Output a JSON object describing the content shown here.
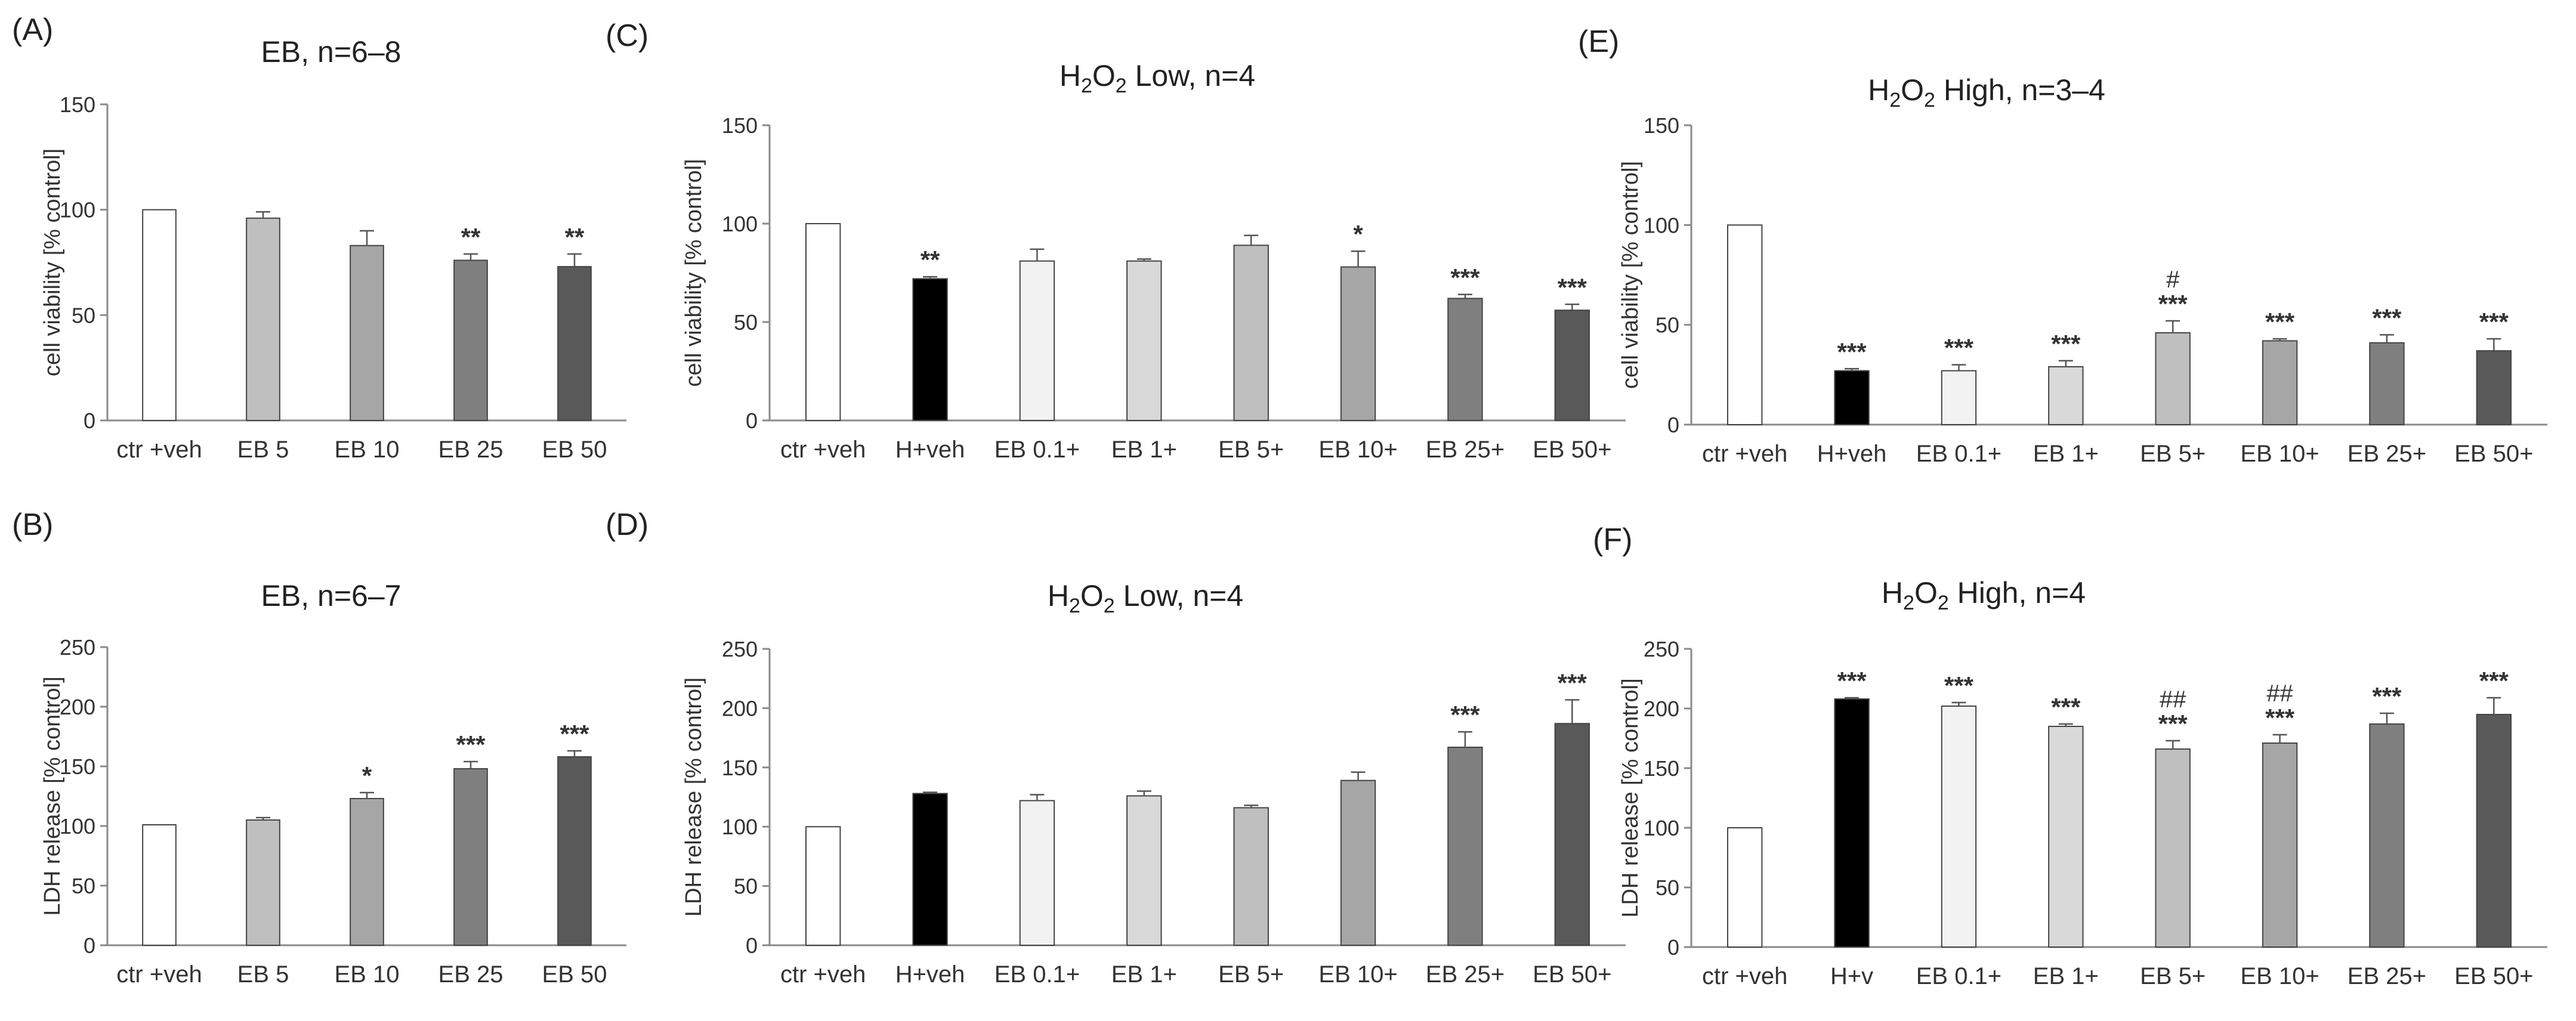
{
  "figure": {
    "panels": [
      {
        "letter": "(A)",
        "title_parts": [
          "EB, n=6–8"
        ]
      },
      {
        "letter": "(B)",
        "title_parts": [
          "EB, n=6–7"
        ]
      },
      {
        "letter": "(C)",
        "title_parts": [
          "H",
          "2",
          "O",
          "2",
          " Low, n=4"
        ]
      },
      {
        "letter": "(D)",
        "title_parts": [
          "H",
          "2",
          "O",
          "2",
          " Low, n=4"
        ]
      },
      {
        "letter": "(E)",
        "title_parts": [
          "H",
          "2",
          "O",
          "2",
          " High, n=3–4"
        ]
      },
      {
        "letter": "(F)",
        "title_parts": [
          "H",
          "2",
          "O",
          "2",
          " High, n=4"
        ]
      }
    ]
  },
  "colors": {
    "axis": "#8a8a8a",
    "bar_stroke": "#444444",
    "ctr": "#ffffff",
    "H": "#000000",
    "EB0.1": "#f2f2f2",
    "EB1": "#d9d9d9",
    "EB5": "#bfbfbf",
    "EB10": "#a6a6a6",
    "EB25": "#7f7f7f",
    "EB50": "#595959"
  },
  "chart_data": [
    {
      "panel": "A",
      "type": "bar",
      "title": "EB, n=6–8",
      "ylabel": "cell viability [% control]",
      "xlabel": "",
      "ylim": [
        0,
        150
      ],
      "yticks": [
        0,
        50,
        100,
        150
      ],
      "categories": [
        "ctr +veh",
        "EB 5",
        "EB 10",
        "EB 25",
        "EB 50"
      ],
      "values": [
        100,
        96,
        83,
        76,
        73
      ],
      "errors": [
        0,
        3,
        7,
        3,
        6
      ],
      "significance": [
        "",
        "",
        "",
        "**",
        "**"
      ],
      "colors": [
        "ctr",
        "EB5",
        "EB10",
        "EB25",
        "EB50"
      ]
    },
    {
      "panel": "B",
      "type": "bar",
      "title": "EB, n=6–7",
      "ylabel": "LDH release [% control]",
      "xlabel": "",
      "ylim": [
        0,
        250
      ],
      "yticks": [
        0,
        50,
        100,
        150,
        200,
        250
      ],
      "categories": [
        "ctr +veh",
        "EB 5",
        "EB 10",
        "EB 25",
        "EB 50"
      ],
      "values": [
        101,
        105,
        123,
        148,
        158
      ],
      "errors": [
        0,
        2,
        5,
        6,
        5
      ],
      "significance": [
        "",
        "",
        "*",
        "***",
        "***"
      ],
      "colors": [
        "ctr",
        "EB5",
        "EB10",
        "EB25",
        "EB50"
      ]
    },
    {
      "panel": "C",
      "type": "bar",
      "title": "H2O2 Low, n=4",
      "ylabel": "cell viability [% control]",
      "xlabel": "",
      "ylim": [
        0,
        150
      ],
      "yticks": [
        0,
        50,
        100,
        150
      ],
      "categories": [
        "ctr +veh",
        "H+veh",
        "EB 0.1+",
        "EB 1+",
        "EB 5+",
        "EB 10+",
        "EB 25+",
        "EB 50+"
      ],
      "values": [
        100,
        72,
        81,
        81,
        89,
        78,
        62,
        56
      ],
      "errors": [
        0,
        1,
        6,
        1,
        5,
        8,
        2,
        3
      ],
      "significance": [
        "",
        "**",
        "",
        "",
        "",
        "*",
        "***",
        "***"
      ],
      "colors": [
        "ctr",
        "H",
        "EB0.1",
        "EB1",
        "EB5",
        "EB10",
        "EB25",
        "EB50"
      ]
    },
    {
      "panel": "D",
      "type": "bar",
      "title": "H2O2 Low, n=4",
      "ylabel": "LDH release [% control]",
      "xlabel": "",
      "ylim": [
        0,
        250
      ],
      "yticks": [
        0,
        50,
        100,
        150,
        200,
        250
      ],
      "categories": [
        "ctr +veh",
        "H+veh",
        "EB 0.1+",
        "EB 1+",
        "EB 5+",
        "EB 10+",
        "EB 25+",
        "EB 50+"
      ],
      "values": [
        100,
        128,
        122,
        126,
        116,
        139,
        167,
        187
      ],
      "errors": [
        0,
        1,
        5,
        4,
        2,
        7,
        13,
        20
      ],
      "significance": [
        "",
        "",
        "",
        "",
        "",
        "",
        "***",
        "***"
      ],
      "colors": [
        "ctr",
        "H",
        "EB0.1",
        "EB1",
        "EB5",
        "EB10",
        "EB25",
        "EB50"
      ]
    },
    {
      "panel": "E",
      "type": "bar",
      "title": "H2O2 High, n=3–4",
      "ylabel": "cell viability [% control]",
      "xlabel": "",
      "ylim": [
        0,
        150
      ],
      "yticks": [
        0,
        50,
        100,
        150
      ],
      "categories": [
        "ctr +veh",
        "H+veh",
        "EB 0.1+",
        "EB 1+",
        "EB 5+",
        "EB 10+",
        "EB 25+",
        "EB 50+"
      ],
      "values": [
        100,
        27,
        27,
        29,
        46,
        42,
        41,
        37
      ],
      "errors": [
        0,
        1,
        3,
        3,
        6,
        1,
        4,
        6
      ],
      "significance": [
        "",
        "***",
        "***",
        "***",
        "***",
        "***",
        "***",
        "***"
      ],
      "hash": [
        "",
        "",
        "",
        "",
        "#",
        "",
        "",
        ""
      ],
      "colors": [
        "ctr",
        "H",
        "EB0.1",
        "EB1",
        "EB5",
        "EB10",
        "EB25",
        "EB50"
      ]
    },
    {
      "panel": "F",
      "type": "bar",
      "title": "H2O2 High, n=4",
      "ylabel": "LDH release [% control]",
      "xlabel": "",
      "ylim": [
        0,
        250
      ],
      "yticks": [
        0,
        50,
        100,
        150,
        200,
        250
      ],
      "categories": [
        "ctr +veh",
        "H+v",
        "EB 0.1+",
        "EB 1+",
        "EB 5+",
        "EB 10+",
        "EB 25+",
        "EB 50+"
      ],
      "values": [
        100,
        208,
        202,
        185,
        166,
        171,
        187,
        195
      ],
      "errors": [
        0,
        1,
        3,
        2,
        7,
        7,
        9,
        14
      ],
      "significance": [
        "",
        "***",
        "***",
        "***",
        "***",
        "***",
        "***",
        "***"
      ],
      "hash": [
        "",
        "",
        "",
        "",
        "##",
        "##",
        "",
        ""
      ],
      "colors": [
        "ctr",
        "H",
        "EB0.1",
        "EB1",
        "EB5",
        "EB10",
        "EB25",
        "EB50"
      ]
    }
  ]
}
